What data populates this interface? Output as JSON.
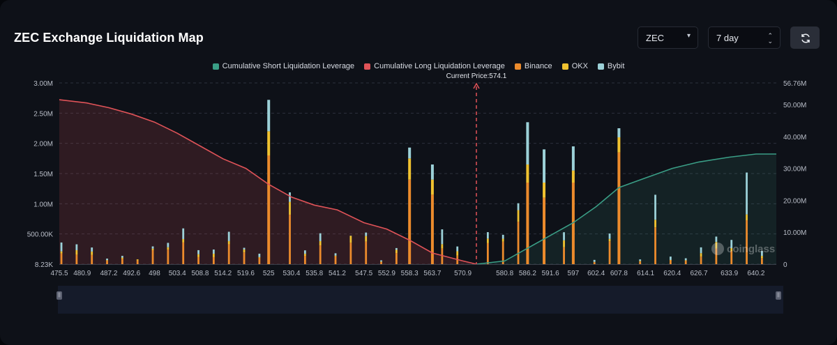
{
  "page": {
    "title": "ZEC Exchange Liquidation Map",
    "watermark": "coinglass"
  },
  "controls": {
    "coin": "ZEC",
    "range": "7 day"
  },
  "colors": {
    "short": "#3a9e86",
    "long": "#e05358",
    "binance": "#ec8b2c",
    "okx": "#f0c230",
    "bybit": "#9cd1d8",
    "background": "#0e1118"
  },
  "chart_data": {
    "type": "bar",
    "current_price_label": "Current Price:574.1",
    "current_price": 574.1,
    "legend_position": "top",
    "grid": "horizontal dashed",
    "legend": [
      {
        "name": "Cumulative Short Liquidation Leverage",
        "color": "#3a9e86"
      },
      {
        "name": "Cumulative Long Liquidation Leverage",
        "color": "#e05358"
      },
      {
        "name": "Binance",
        "color": "#ec8b2c"
      },
      {
        "name": "OKX",
        "color": "#f0c230"
      },
      {
        "name": "Bybit",
        "color": "#9cd1d8"
      }
    ],
    "x_tick_labels": [
      "475.5",
      "480.9",
      "487.2",
      "492.6",
      "498",
      "503.4",
      "508.8",
      "514.2",
      "519.6",
      "525",
      "530.4",
      "535.8",
      "541.2",
      "547.5",
      "552.9",
      "558.3",
      "563.7",
      "570.9",
      "580.8",
      "586.2",
      "591.6",
      "597",
      "602.4",
      "607.8",
      "614.1",
      "620.4",
      "626.7",
      "633.9",
      "640.2"
    ],
    "x_range": [
      475.5,
      645.0
    ],
    "y_left_ticks": [
      "8.23K",
      "500.00K",
      "1.00M",
      "1.50M",
      "2.00M",
      "2.50M",
      "3.00M"
    ],
    "y_left_range": [
      0,
      3000000
    ],
    "y_right_ticks": [
      "0",
      "10.00M",
      "20.00M",
      "30.00M",
      "40.00M",
      "50.00M",
      "56.76M"
    ],
    "y_right_range": [
      0,
      56760000
    ],
    "series": [
      {
        "name": "Binance",
        "x": [
          525.0,
          558.3,
          563.7,
          586.2,
          590.1,
          597.0,
          607.8
        ],
        "values": [
          1800000,
          1400000,
          1150000,
          1350000,
          1100000,
          1350000,
          1850000
        ]
      },
      {
        "name": "OKX",
        "x": [
          525.0,
          558.3,
          563.7,
          586.2,
          590.1,
          597.0,
          607.8
        ],
        "values": [
          400000,
          350000,
          250000,
          300000,
          250000,
          200000,
          250000
        ]
      },
      {
        "name": "Bybit",
        "x": [
          525.0,
          558.3,
          563.7,
          586.2,
          590.1,
          597.0,
          607.8
        ],
        "values": [
          520000,
          180000,
          250000,
          700000,
          550000,
          400000,
          150000
        ]
      },
      {
        "name": "Cumulative Long Liquidation Leverage",
        "x": [
          475.5,
          482,
          487.2,
          492.6,
          498,
          503.4,
          508.8,
          514.2,
          519.6,
          525,
          530.4,
          535.8,
          541.2,
          547.5,
          552.9,
          558.3,
          563.7,
          570.9,
          574.1
        ],
        "values": [
          51500000,
          50500000,
          49000000,
          47000000,
          44500000,
          41000000,
          37000000,
          33000000,
          30000000,
          25000000,
          21000000,
          18500000,
          17000000,
          13000000,
          11000000,
          7500000,
          3500000,
          1000000,
          0
        ]
      },
      {
        "name": "Cumulative Short Liquidation Leverage",
        "x": [
          574.1,
          580.8,
          586.2,
          591.6,
          597,
          602.4,
          607.8,
          614.1,
          620.4,
          626.7,
          633.9,
          640.2,
          645.0
        ],
        "values": [
          0,
          1000000,
          5000000,
          9000000,
          13000000,
          18000000,
          24000000,
          27000000,
          30000000,
          32000000,
          33500000,
          34500000,
          34500000
        ]
      }
    ]
  }
}
